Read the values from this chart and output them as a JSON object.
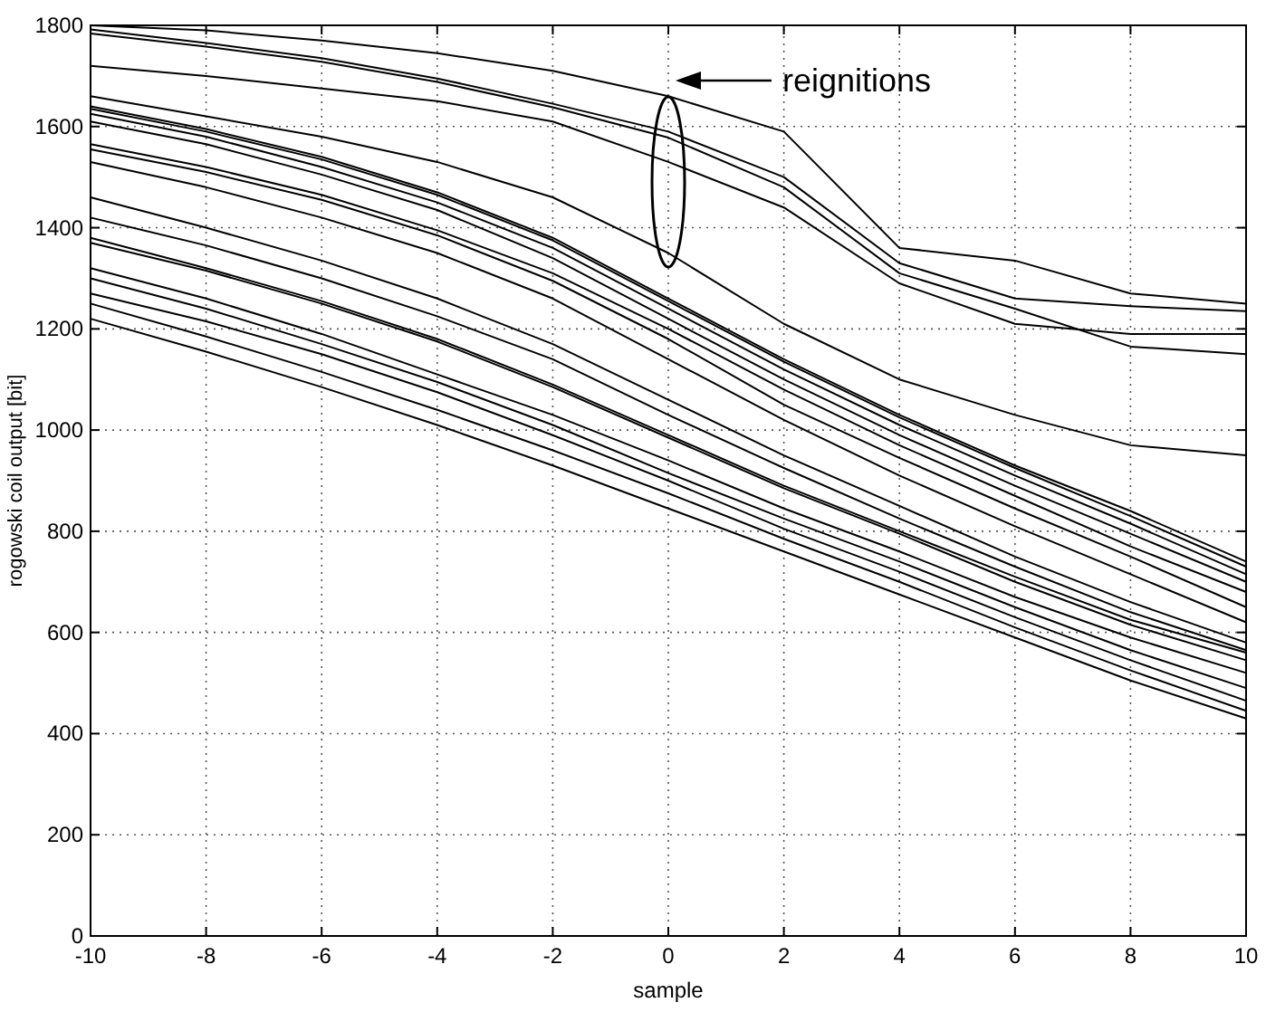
{
  "chart_data": {
    "type": "line",
    "xlabel": "sample",
    "ylabel": "rogowski coil output [bit]",
    "x": [
      -10,
      -8,
      -6,
      -4,
      -2,
      0,
      2,
      4,
      6,
      8,
      10
    ],
    "xlim": [
      -10,
      10
    ],
    "ylim": [
      0,
      1800
    ],
    "xticks": [
      -10,
      -8,
      -6,
      -4,
      -2,
      0,
      2,
      4,
      6,
      8,
      10
    ],
    "yticks": [
      0,
      200,
      400,
      600,
      800,
      1000,
      1200,
      1400,
      1600,
      1800
    ],
    "grid": true,
    "marker": "none",
    "line_style": "solid",
    "annotations": [
      "reignitions"
    ],
    "series": [
      {
        "color": "#000000",
        "values": [
          1800,
          1790,
          1770,
          1745,
          1710,
          1660,
          1590,
          1360,
          1335,
          1270,
          1250
        ]
      },
      {
        "color": "#000000",
        "values": [
          1792,
          1765,
          1735,
          1695,
          1645,
          1590,
          1500,
          1330,
          1260,
          1245,
          1235
        ]
      },
      {
        "color": "#000000",
        "values": [
          1784,
          1758,
          1728,
          1688,
          1638,
          1578,
          1480,
          1310,
          1240,
          1165,
          1150
        ]
      },
      {
        "color": "#000000",
        "values": [
          1720,
          1700,
          1675,
          1650,
          1610,
          1530,
          1440,
          1290,
          1210,
          1190,
          1190
        ]
      },
      {
        "color": "#000000",
        "values": [
          1660,
          1620,
          1580,
          1530,
          1460,
          1350,
          1210,
          1100,
          1030,
          970,
          950
        ]
      },
      {
        "color": "#000000",
        "values": [
          1640,
          1595,
          1540,
          1470,
          1380,
          1260,
          1140,
          1030,
          930,
          840,
          740
        ]
      },
      {
        "color": "#000000",
        "values": [
          1635,
          1590,
          1535,
          1465,
          1375,
          1255,
          1135,
          1025,
          925,
          830,
          730
        ]
      },
      {
        "color": "#000000",
        "values": [
          1625,
          1580,
          1520,
          1450,
          1360,
          1240,
          1120,
          1010,
          910,
          815,
          715
        ]
      },
      {
        "color": "#000000",
        "values": [
          1610,
          1565,
          1505,
          1435,
          1340,
          1220,
          1100,
          990,
          890,
          795,
          700
        ]
      },
      {
        "color": "#000000",
        "values": [
          1565,
          1520,
          1465,
          1395,
          1310,
          1200,
          1080,
          970,
          870,
          770,
          680
        ]
      },
      {
        "color": "#000000",
        "values": [
          1555,
          1510,
          1455,
          1385,
          1295,
          1180,
          1050,
          945,
          845,
          750,
          650
        ]
      },
      {
        "color": "#000000",
        "values": [
          1530,
          1480,
          1420,
          1350,
          1260,
          1140,
          1020,
          910,
          810,
          715,
          620
        ]
      },
      {
        "color": "#000000",
        "values": [
          1460,
          1400,
          1335,
          1260,
          1170,
          1060,
          950,
          850,
          750,
          660,
          580
        ]
      },
      {
        "color": "#000000",
        "values": [
          1420,
          1365,
          1300,
          1225,
          1140,
          1030,
          925,
          825,
          730,
          640,
          565
        ]
      },
      {
        "color": "#000000",
        "values": [
          1380,
          1320,
          1255,
          1180,
          1090,
          990,
          890,
          800,
          710,
          625,
          560
        ]
      },
      {
        "color": "#000000",
        "values": [
          1370,
          1315,
          1250,
          1175,
          1085,
          985,
          885,
          795,
          700,
          615,
          545
        ]
      },
      {
        "color": "#000000",
        "values": [
          1320,
          1260,
          1190,
          1110,
          1030,
          940,
          845,
          760,
          670,
          590,
          520
        ]
      },
      {
        "color": "#000000",
        "values": [
          1300,
          1240,
          1170,
          1095,
          1010,
          915,
          825,
          740,
          650,
          565,
          490
        ]
      },
      {
        "color": "#000000",
        "values": [
          1270,
          1215,
          1150,
          1075,
          990,
          900,
          805,
          720,
          630,
          545,
          465
        ]
      },
      {
        "color": "#000000",
        "values": [
          1250,
          1185,
          1115,
          1040,
          960,
          875,
          785,
          700,
          610,
          525,
          445
        ]
      },
      {
        "color": "#000000",
        "values": [
          1220,
          1155,
          1085,
          1010,
          930,
          845,
          760,
          675,
          590,
          505,
          430
        ]
      }
    ]
  }
}
